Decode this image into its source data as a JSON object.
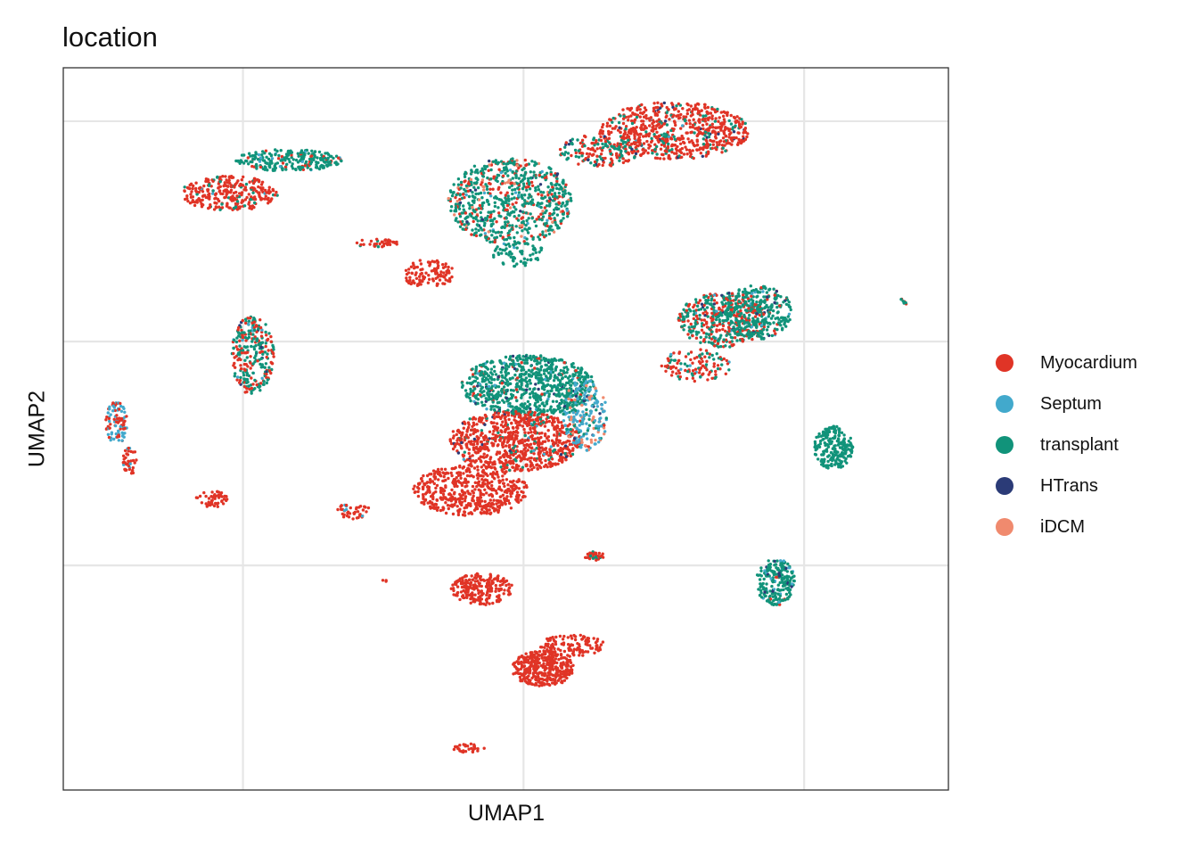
{
  "chart_data": {
    "type": "scatter",
    "title": "location",
    "xlabel": "UMAP1",
    "ylabel": "UMAP2",
    "xlim": [
      0,
      100
    ],
    "ylim": [
      0,
      100
    ],
    "grid": true,
    "x_gridlines": [
      20.3,
      52.0,
      83.7
    ],
    "y_gridlines": [
      31.1,
      62.1,
      92.6
    ],
    "legend_position": "right",
    "series": [
      {
        "name": "Myocardium",
        "color": "#E03426"
      },
      {
        "name": "Septum",
        "color": "#42A9CC"
      },
      {
        "name": "transplant",
        "color": "#11937A"
      },
      {
        "name": "HTrans",
        "color": "#2B3B77"
      },
      {
        "name": "iDCM",
        "color": "#F08A6E"
      }
    ],
    "clusters": [
      {
        "x": 69,
        "y": 91.3,
        "rx": 8.5,
        "ry": 4.0,
        "n": 700,
        "mix": [
          0.82,
          0.01,
          0.15,
          0.02,
          0.0
        ]
      },
      {
        "x": 60.5,
        "y": 88.5,
        "rx": 4.5,
        "ry": 2.2,
        "n": 160,
        "mix": [
          0.55,
          0.0,
          0.43,
          0.02,
          0.0
        ]
      },
      {
        "x": 50.5,
        "y": 81.5,
        "rx": 7.0,
        "ry": 6.0,
        "n": 750,
        "mix": [
          0.25,
          0.02,
          0.66,
          0.02,
          0.05
        ]
      },
      {
        "x": 51.3,
        "y": 74.3,
        "rx": 3.0,
        "ry": 1.8,
        "n": 70,
        "mix": [
          0.0,
          0.05,
          0.95,
          0.0,
          0.0
        ]
      },
      {
        "x": 18.8,
        "y": 82.6,
        "rx": 5.5,
        "ry": 2.4,
        "n": 300,
        "mix": [
          0.88,
          0.01,
          0.11,
          0.0,
          0.0
        ]
      },
      {
        "x": 25.5,
        "y": 87.2,
        "rx": 6.0,
        "ry": 1.5,
        "n": 250,
        "mix": [
          0.12,
          0.03,
          0.85,
          0.0,
          0.0
        ]
      },
      {
        "x": 35.3,
        "y": 75.7,
        "rx": 2.5,
        "ry": 0.6,
        "n": 40,
        "mix": [
          0.85,
          0.0,
          0.15,
          0.0,
          0.0
        ]
      },
      {
        "x": 41.2,
        "y": 71.5,
        "rx": 3.0,
        "ry": 2.0,
        "n": 110,
        "mix": [
          1.0,
          0.0,
          0.0,
          0.0,
          0.0
        ]
      },
      {
        "x": 21.4,
        "y": 60.2,
        "rx": 2.4,
        "ry": 5.5,
        "n": 280,
        "mix": [
          0.35,
          0.05,
          0.57,
          0.03,
          0.0
        ]
      },
      {
        "x": 74.5,
        "y": 65.1,
        "rx": 5.0,
        "ry": 3.8,
        "n": 450,
        "mix": [
          0.45,
          0.03,
          0.48,
          0.04,
          0.0
        ]
      },
      {
        "x": 78.5,
        "y": 66.2,
        "rx": 3.8,
        "ry": 3.8,
        "n": 300,
        "mix": [
          0.1,
          0.04,
          0.83,
          0.03,
          0.0
        ]
      },
      {
        "x": 71.5,
        "y": 58.8,
        "rx": 4.0,
        "ry": 2.2,
        "n": 120,
        "mix": [
          0.6,
          0.05,
          0.35,
          0.0,
          0.0
        ]
      },
      {
        "x": 52.5,
        "y": 56.0,
        "rx": 7.5,
        "ry": 4.2,
        "n": 800,
        "mix": [
          0.05,
          0.03,
          0.88,
          0.04,
          0.0
        ]
      },
      {
        "x": 51.0,
        "y": 48.3,
        "rx": 7.5,
        "ry": 4.2,
        "n": 800,
        "mix": [
          0.9,
          0.01,
          0.06,
          0.03,
          0.0
        ]
      },
      {
        "x": 59.0,
        "y": 52.0,
        "rx": 2.5,
        "ry": 5.0,
        "n": 220,
        "mix": [
          0.05,
          0.55,
          0.2,
          0.05,
          0.15
        ]
      },
      {
        "x": 46.0,
        "y": 41.5,
        "rx": 6.5,
        "ry": 3.5,
        "n": 500,
        "mix": [
          1.0,
          0.0,
          0.0,
          0.0,
          0.0
        ]
      },
      {
        "x": 87.0,
        "y": 47.4,
        "rx": 2.2,
        "ry": 3.0,
        "n": 220,
        "mix": [
          0.0,
          0.0,
          1.0,
          0.0,
          0.0
        ]
      },
      {
        "x": 80.5,
        "y": 28.8,
        "rx": 2.2,
        "ry": 3.2,
        "n": 220,
        "mix": [
          0.05,
          0.05,
          0.88,
          0.02,
          0.0
        ]
      },
      {
        "x": 6.0,
        "y": 50.8,
        "rx": 1.2,
        "ry": 3.0,
        "n": 90,
        "mix": [
          0.45,
          0.55,
          0.0,
          0.0,
          0.0
        ]
      },
      {
        "x": 7.5,
        "y": 45.5,
        "rx": 0.8,
        "ry": 2.0,
        "n": 40,
        "mix": [
          0.85,
          0.15,
          0.0,
          0.0,
          0.0
        ]
      },
      {
        "x": 16.8,
        "y": 40.3,
        "rx": 1.8,
        "ry": 1.2,
        "n": 50,
        "mix": [
          1.0,
          0.0,
          0.0,
          0.0,
          0.0
        ]
      },
      {
        "x": 32.8,
        "y": 38.7,
        "rx": 1.8,
        "ry": 1.2,
        "n": 45,
        "mix": [
          0.9,
          0.1,
          0.0,
          0.0,
          0.0
        ]
      },
      {
        "x": 47.3,
        "y": 27.8,
        "rx": 3.5,
        "ry": 2.2,
        "n": 220,
        "mix": [
          1.0,
          0.0,
          0.0,
          0.0,
          0.0
        ]
      },
      {
        "x": 54.2,
        "y": 16.8,
        "rx": 3.5,
        "ry": 2.5,
        "n": 380,
        "mix": [
          1.0,
          0.0,
          0.0,
          0.0,
          0.0
        ]
      },
      {
        "x": 57.5,
        "y": 20.0,
        "rx": 3.8,
        "ry": 1.5,
        "n": 120,
        "mix": [
          1.0,
          0.0,
          0.0,
          0.0,
          0.0
        ]
      },
      {
        "x": 60.0,
        "y": 32.4,
        "rx": 1.1,
        "ry": 0.6,
        "n": 30,
        "mix": [
          0.6,
          0.0,
          0.4,
          0.0,
          0.0
        ]
      },
      {
        "x": 45.8,
        "y": 5.8,
        "rx": 1.8,
        "ry": 0.6,
        "n": 30,
        "mix": [
          1.0,
          0.0,
          0.0,
          0.0,
          0.0
        ]
      },
      {
        "x": 95.1,
        "y": 67.7,
        "rx": 0.5,
        "ry": 0.5,
        "n": 8,
        "mix": [
          0.4,
          0.0,
          0.6,
          0.0,
          0.0
        ]
      },
      {
        "x": 36.3,
        "y": 28.9,
        "rx": 0.3,
        "ry": 0.3,
        "n": 3,
        "mix": [
          1.0,
          0.0,
          0.0,
          0.0,
          0.0
        ]
      }
    ]
  }
}
